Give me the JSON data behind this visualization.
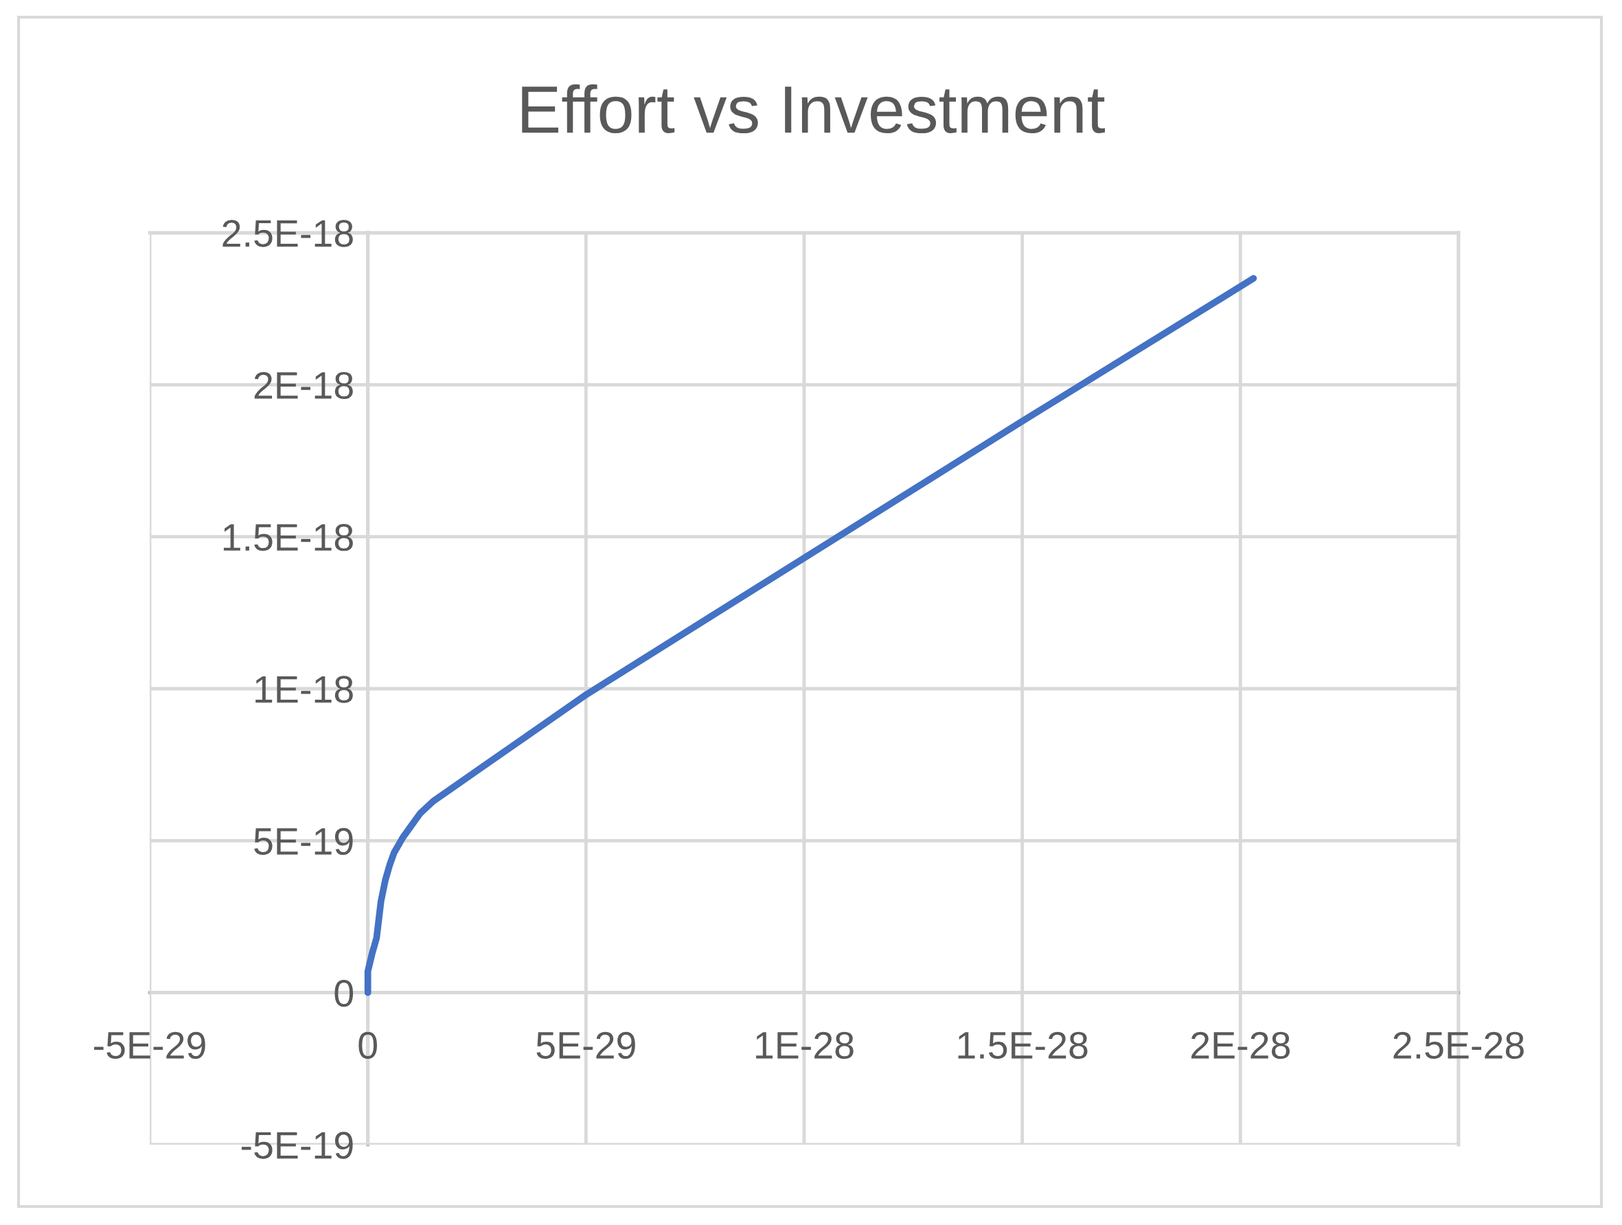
{
  "chart_data": {
    "type": "line",
    "title": "Effort vs Investment",
    "series": [
      {
        "color": "#4472c4",
        "x": [
          0,
          0,
          1e-30,
          2e-30,
          3e-30,
          4e-30,
          5e-30,
          6e-30,
          8e-30,
          1e-29,
          1.2e-29,
          1.5e-29,
          1.8e-29,
          2.6e-29,
          3.8e-29,
          5e-29,
          1e-28,
          1.5e-28,
          2.03e-28
        ],
        "values": [
          0,
          7e-20,
          1.3e-19,
          1.8e-19,
          3e-19,
          3.7e-19,
          4.2e-19,
          4.6e-19,
          5.1e-19,
          5.5e-19,
          5.9e-19,
          6.3e-19,
          6.6e-19,
          7.4e-19,
          8.6e-19,
          9.8e-19,
          1.43e-18,
          1.88e-18,
          2.35e-18
        ]
      }
    ],
    "xlim": [
      -5e-29,
      2.5e-28
    ],
    "xticks": [
      {
        "value": -5e-29,
        "label": "-5E-29"
      },
      {
        "value": 0,
        "label": "0"
      },
      {
        "value": 5e-29,
        "label": "5E-29"
      },
      {
        "value": 1e-28,
        "label": "1E-28"
      },
      {
        "value": 1.5e-28,
        "label": "1.5E-28"
      },
      {
        "value": 2e-28,
        "label": "2E-28"
      },
      {
        "value": 2.5e-28,
        "label": "2.5E-28"
      }
    ],
    "ylim": [
      -5e-19,
      2.5e-18
    ],
    "yticks": [
      {
        "value": -5e-19,
        "label": "-5E-19"
      },
      {
        "value": 0,
        "label": "0"
      },
      {
        "value": 5e-19,
        "label": "5E-19"
      },
      {
        "value": 1e-18,
        "label": "1E-18"
      },
      {
        "value": 1.5e-18,
        "label": "1.5E-18"
      },
      {
        "value": 2e-18,
        "label": "2E-18"
      },
      {
        "value": 2.5e-18,
        "label": "2.5E-18"
      }
    ],
    "grid": true,
    "marker": "none",
    "line_style": "solid"
  }
}
